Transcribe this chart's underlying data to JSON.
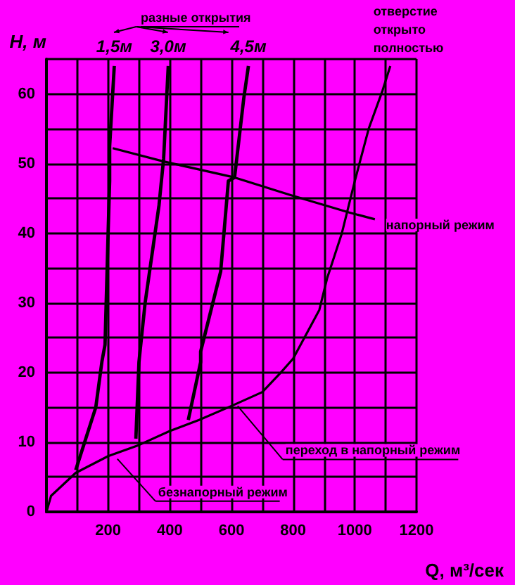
{
  "chart_data": {
    "type": "line",
    "xlabel": "Q, м³/сек",
    "ylabel": "H, м",
    "xlim": [
      0,
      1200
    ],
    "ylim": [
      0,
      65
    ],
    "xticks": [
      {
        "value": 0,
        "label": null
      },
      {
        "value": 100,
        "label": null
      },
      200,
      {
        "value": 300,
        "label": null
      },
      400,
      {
        "value": 500,
        "label": null
      },
      600,
      {
        "value": 700,
        "label": null
      },
      800,
      {
        "value": 900,
        "label": null
      },
      1000,
      {
        "value": 1100,
        "label": null
      },
      1200
    ],
    "yticks": [
      0,
      {
        "value": 5,
        "label": null
      },
      10,
      {
        "value": 15,
        "label": null
      },
      20,
      {
        "value": 25,
        "label": null
      },
      30,
      {
        "value": 35,
        "label": null
      },
      40,
      {
        "value": 45,
        "label": null
      },
      50,
      {
        "value": 55,
        "label": null
      },
      60,
      {
        "value": 65,
        "label": null
      }
    ],
    "grid": true,
    "legend": false,
    "marker": "none",
    "line_style": "solid",
    "series": [
      {
        "name": "отверстие открыто полностью",
        "color": "#000000",
        "x": [
          0,
          15,
          95,
          200,
          300,
          400,
          495,
          600,
          700,
          760,
          800,
          885,
          910,
          958,
          1000,
          1045,
          1090,
          1115
        ],
        "values": [
          0,
          2.3,
          5.6,
          8,
          9.6,
          11.6,
          13.2,
          15.2,
          17.2,
          20,
          22,
          29,
          33.5,
          40,
          47.5,
          55,
          60.5,
          64
        ]
      },
      {
        "color": "#000000",
        "x": [
          95,
          160,
          180,
          190,
          200,
          205,
          205,
          220
        ],
        "values": [
          6,
          15,
          21.6,
          24,
          40,
          47.5,
          52.5,
          64
        ]
      },
      {
        "color": "#000000",
        "x": [
          290,
          300,
          320,
          365,
          380,
          395
        ],
        "values": [
          10.5,
          21.5,
          30,
          44,
          50.7,
          64
        ]
      },
      {
        "color": "#000000",
        "x": [
          460,
          500,
          500,
          565,
          590,
          610,
          640,
          655
        ],
        "values": [
          13.2,
          21.5,
          23,
          34.5,
          47.5,
          48,
          59.4,
          64
        ]
      },
      {
        "name": "напорный режим",
        "color": "#000000",
        "x": [
          215,
          380,
          610,
          790,
          980,
          1065
        ],
        "values": [
          52.2,
          50.3,
          48,
          45.5,
          43,
          42
        ]
      }
    ],
    "annotations": [
      "разные открытия",
      {
        "text": "1,5м",
        "x": 220,
        "y": 64
      },
      {
        "text": "3,0м",
        "x": 395,
        "y": 64
      },
      {
        "text": "4,5м",
        "x": 655,
        "y": 64
      },
      {
        "text": "безнапорный режим",
        "x": 230,
        "y": 7.6
      },
      {
        "text": "переход в напорный режим",
        "x": 620,
        "y": 15.2
      }
    ]
  }
}
